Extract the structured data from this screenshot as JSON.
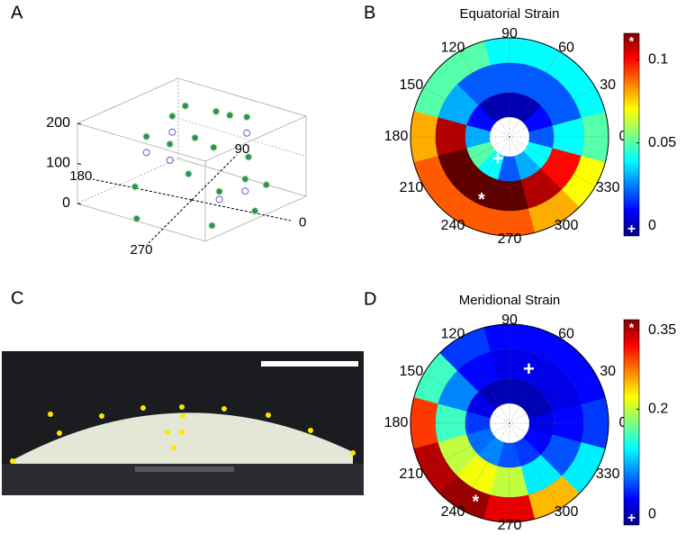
{
  "photo": {
    "panel": "C"
  },
  "chart_data": [
    {
      "type": "scatter3d",
      "panel": "A",
      "zlim": [
        0,
        200
      ],
      "zticks": [
        0,
        100,
        200
      ],
      "angle_ticks": [
        0,
        90,
        180,
        270
      ],
      "series": [
        {
          "color": "#2e8b6e",
          "x": [
            -0.6,
            -0.4,
            -0.3,
            0.0,
            0.2,
            0.3,
            0.5,
            0.6,
            0.4,
            0.7,
            0.1,
            -0.2,
            -0.5,
            -0.3,
            0.5,
            0.8,
            -0.1,
            0.2
          ],
          "y": [
            0.2,
            0.4,
            0.5,
            0.6,
            0.5,
            0.7,
            0.3,
            0.0,
            -0.2,
            0.3,
            -0.3,
            -0.1,
            -0.3,
            -0.7,
            -0.6,
            -0.2,
            0.3,
            0.1
          ],
          "z": [
            110,
            150,
            170,
            160,
            170,
            150,
            100,
            80,
            60,
            40,
            100,
            140,
            40,
            10,
            20,
            30,
            120,
            130
          ]
        },
        {
          "color": "#6a5acd",
          "x": [
            -0.6,
            -0.4,
            -0.2,
            0.3,
            0.6,
            0.4
          ],
          "y": [
            0.2,
            0.4,
            -0.1,
            0.7,
            0.0,
            -0.2
          ],
          "z": [
            70,
            110,
            100,
            110,
            50,
            40
          ]
        }
      ]
    },
    {
      "type": "polar_heatmap",
      "panel": "B",
      "title": "Equatorial Strain",
      "angle_ticks": [
        0,
        30,
        60,
        90,
        120,
        150,
        180,
        210,
        240,
        270,
        300,
        330
      ],
      "rings": [
        0.2,
        0.45,
        0.75,
        1
      ],
      "values": [
        [
          0.02,
          0.01,
          0.0,
          0.0,
          0.0,
          0.01,
          0.03,
          0.05,
          0.04,
          0.02,
          0.03,
          0.04
        ],
        [
          0.04,
          0.02,
          0.02,
          0.02,
          0.02,
          0.03,
          0.11,
          0.12,
          0.12,
          0.12,
          0.11,
          0.1
        ],
        [
          0.05,
          0.04,
          0.04,
          0.04,
          0.05,
          0.05,
          0.08,
          0.09,
          0.09,
          0.09,
          0.08,
          0.07
        ]
      ],
      "clim": [
        -0.006,
        0.116
      ],
      "cticks": [
        0,
        0.05,
        0.1
      ],
      "max_marker": {
        "label": "*",
        "angle": 245,
        "r": 0.67
      },
      "min_marker": {
        "label": "+",
        "angle": 243,
        "r": 0.26
      }
    },
    {
      "type": "polar_heatmap",
      "panel": "D",
      "title": "Meridional Strain",
      "angle_ticks": [
        0,
        30,
        60,
        90,
        120,
        150,
        180,
        210,
        240,
        270,
        300,
        330
      ],
      "rings": [
        0.2,
        0.45,
        0.75,
        1
      ],
      "values": [
        [
          0.02,
          0.0,
          0.0,
          0.0,
          0.0,
          0.02,
          0.05,
          0.07,
          0.08,
          0.06,
          0.05,
          0.03
        ],
        [
          0.03,
          0.02,
          0.02,
          0.02,
          0.03,
          0.08,
          0.15,
          0.2,
          0.22,
          0.2,
          0.12,
          0.06
        ],
        [
          0.05,
          0.03,
          0.03,
          0.03,
          0.05,
          0.15,
          0.3,
          0.35,
          0.36,
          0.33,
          0.25,
          0.12
        ]
      ],
      "clim": [
        -0.02,
        0.37
      ],
      "cticks": [
        0,
        0.2,
        0.35
      ],
      "max_marker": {
        "label": "*",
        "angle": 246,
        "r": 0.84
      },
      "min_marker": {
        "label": "+",
        "angle": 70,
        "r": 0.57
      }
    }
  ]
}
